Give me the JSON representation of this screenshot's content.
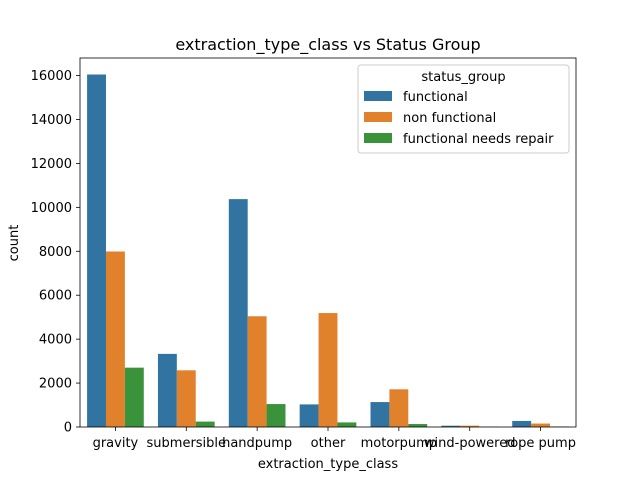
{
  "chart_data": {
    "type": "bar",
    "title": "extraction_type_class vs Status Group",
    "xlabel": "extraction_type_class",
    "ylabel": "count",
    "categories": [
      "gravity",
      "submersible",
      "handpump",
      "other",
      "motorpump",
      "wind-powered",
      "rope pump"
    ],
    "ylim": [
      0,
      16800
    ],
    "yticks": [
      0,
      2000,
      4000,
      6000,
      8000,
      10000,
      12000,
      14000,
      16000
    ],
    "legend": {
      "title": "status_group",
      "placement": "top-right"
    },
    "series": [
      {
        "name": "functional",
        "color": "#3274a1",
        "values": [
          16049,
          3329,
          10375,
          1029,
          1135,
          59,
          276
        ]
      },
      {
        "name": "non functional",
        "color": "#e1812c",
        "values": [
          7991,
          2581,
          5042,
          5188,
          1717,
          60,
          157
        ]
      },
      {
        "name": "functional needs repair",
        "color": "#3a923a",
        "values": [
          2702,
          246,
          1044,
          208,
          135,
          10,
          22
        ]
      }
    ],
    "grid": false
  }
}
